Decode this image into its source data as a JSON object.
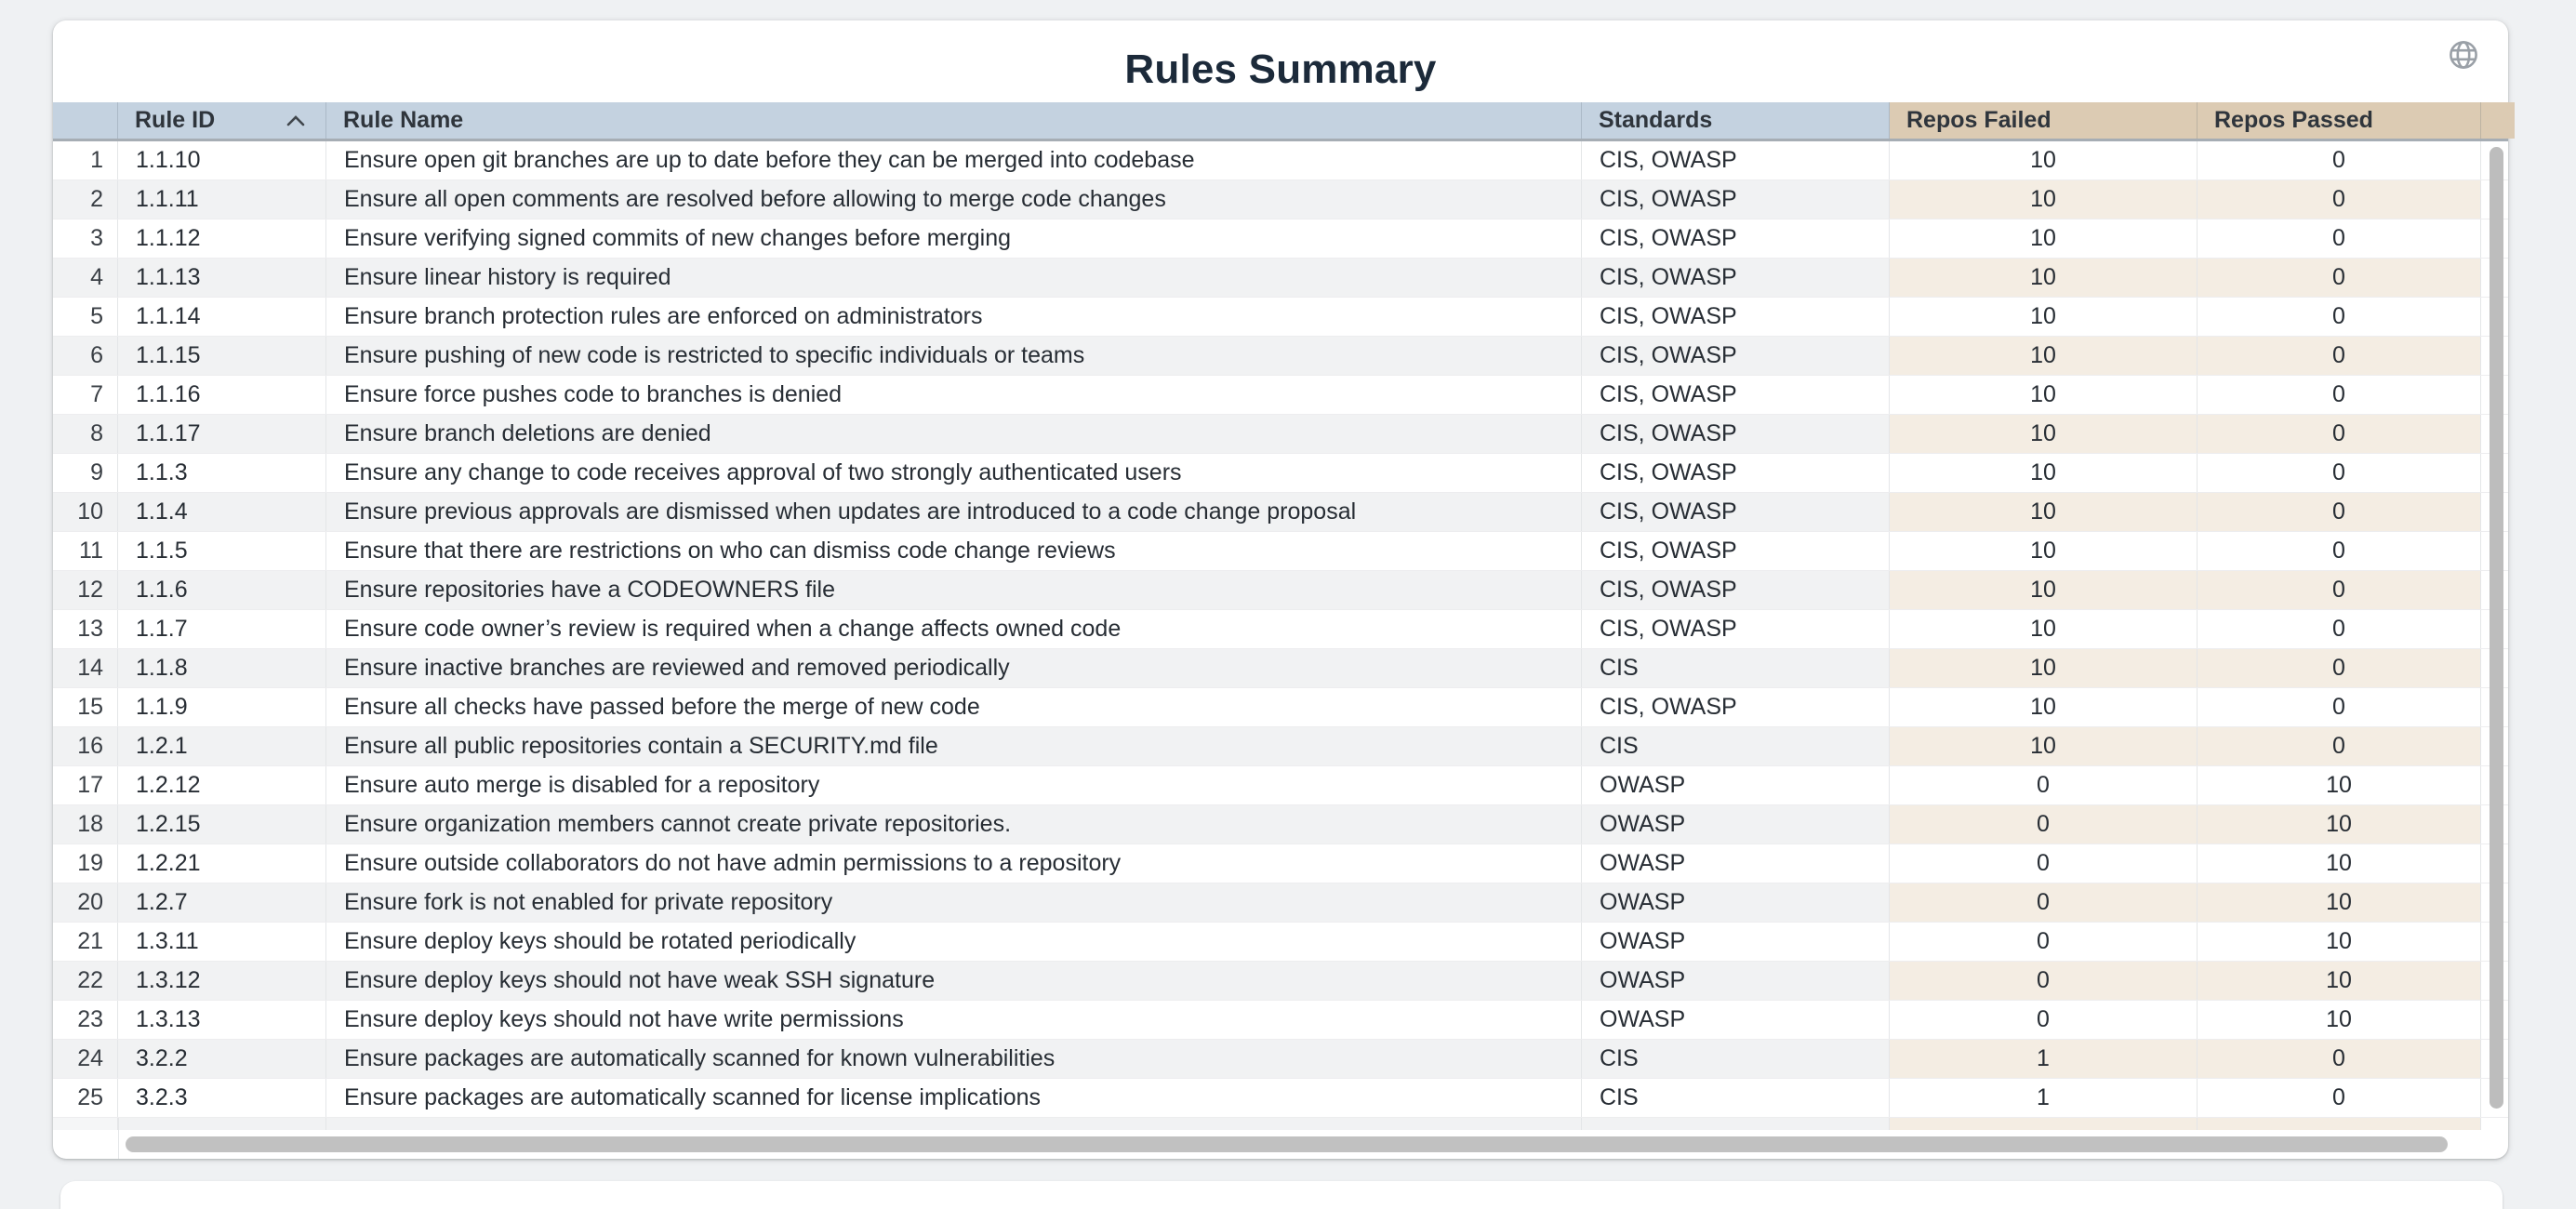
{
  "page": {
    "title": "Rules Summary"
  },
  "icons": {
    "top_right": "globe-icon",
    "rule_id_sort": "sort-ascending-icon"
  },
  "colors": {
    "page_background": "#eff1f3",
    "header_blue": "#c4d2e0",
    "header_tan": "#dccbb3",
    "stripe_gray": "#f1f2f3",
    "stripe_tan": "#f4ede3",
    "title_text": "#1c2a3a",
    "body_text": "#272d34",
    "scrollbar_thumb": "#bdbdbd"
  },
  "table": {
    "columns": [
      {
        "key": "num",
        "label": ""
      },
      {
        "key": "rule_id",
        "label": "Rule ID",
        "sort": "ascending"
      },
      {
        "key": "rule_name",
        "label": "Rule Name"
      },
      {
        "key": "standards",
        "label": "Standards"
      },
      {
        "key": "repos_failed",
        "label": "Repos Failed"
      },
      {
        "key": "repos_passed",
        "label": "Repos Passed"
      }
    ],
    "rows": [
      {
        "num": 1,
        "rule_id": "1.1.10",
        "rule_name": "Ensure open git branches are up to date before they can be merged into codebase",
        "standards": "CIS, OWASP",
        "repos_failed": 10,
        "repos_passed": 0
      },
      {
        "num": 2,
        "rule_id": "1.1.11",
        "rule_name": "Ensure all open comments are resolved before allowing to merge code changes",
        "standards": "CIS, OWASP",
        "repos_failed": 10,
        "repos_passed": 0
      },
      {
        "num": 3,
        "rule_id": "1.1.12",
        "rule_name": "Ensure verifying signed commits of new changes before merging",
        "standards": "CIS, OWASP",
        "repos_failed": 10,
        "repos_passed": 0
      },
      {
        "num": 4,
        "rule_id": "1.1.13",
        "rule_name": "Ensure linear history is required",
        "standards": "CIS, OWASP",
        "repos_failed": 10,
        "repos_passed": 0
      },
      {
        "num": 5,
        "rule_id": "1.1.14",
        "rule_name": "Ensure branch protection rules are enforced on administrators",
        "standards": "CIS, OWASP",
        "repos_failed": 10,
        "repos_passed": 0
      },
      {
        "num": 6,
        "rule_id": "1.1.15",
        "rule_name": "Ensure pushing of new code is restricted to specific individuals or teams",
        "standards": "CIS, OWASP",
        "repos_failed": 10,
        "repos_passed": 0
      },
      {
        "num": 7,
        "rule_id": "1.1.16",
        "rule_name": "Ensure force pushes code to branches is denied",
        "standards": "CIS, OWASP",
        "repos_failed": 10,
        "repos_passed": 0
      },
      {
        "num": 8,
        "rule_id": "1.1.17",
        "rule_name": "Ensure branch deletions are denied",
        "standards": "CIS, OWASP",
        "repos_failed": 10,
        "repos_passed": 0
      },
      {
        "num": 9,
        "rule_id": "1.1.3",
        "rule_name": "Ensure any change to code receives approval of two strongly authenticated users",
        "standards": "CIS, OWASP",
        "repos_failed": 10,
        "repos_passed": 0
      },
      {
        "num": 10,
        "rule_id": "1.1.4",
        "rule_name": "Ensure previous approvals are dismissed when updates are introduced to a code change proposal",
        "standards": "CIS, OWASP",
        "repos_failed": 10,
        "repos_passed": 0
      },
      {
        "num": 11,
        "rule_id": "1.1.5",
        "rule_name": "Ensure that there are restrictions on who can dismiss code change reviews",
        "standards": "CIS, OWASP",
        "repos_failed": 10,
        "repos_passed": 0
      },
      {
        "num": 12,
        "rule_id": "1.1.6",
        "rule_name": "Ensure repositories have a CODEOWNERS file",
        "standards": "CIS, OWASP",
        "repos_failed": 10,
        "repos_passed": 0
      },
      {
        "num": 13,
        "rule_id": "1.1.7",
        "rule_name": "Ensure code owner’s review is required when a change affects owned code",
        "standards": "CIS, OWASP",
        "repos_failed": 10,
        "repos_passed": 0
      },
      {
        "num": 14,
        "rule_id": "1.1.8",
        "rule_name": "Ensure inactive branches are reviewed and removed periodically",
        "standards": "CIS",
        "repos_failed": 10,
        "repos_passed": 0
      },
      {
        "num": 15,
        "rule_id": "1.1.9",
        "rule_name": "Ensure all checks have passed before the merge of new code",
        "standards": "CIS, OWASP",
        "repos_failed": 10,
        "repos_passed": 0
      },
      {
        "num": 16,
        "rule_id": "1.2.1",
        "rule_name": "Ensure all public repositories contain a SECURITY.md file",
        "standards": "CIS",
        "repos_failed": 10,
        "repos_passed": 0
      },
      {
        "num": 17,
        "rule_id": "1.2.12",
        "rule_name": "Ensure auto merge is disabled for a repository",
        "standards": "OWASP",
        "repos_failed": 0,
        "repos_passed": 10
      },
      {
        "num": 18,
        "rule_id": "1.2.15",
        "rule_name": "Ensure organization members cannot create private repositories.",
        "standards": "OWASP",
        "repos_failed": 0,
        "repos_passed": 10
      },
      {
        "num": 19,
        "rule_id": "1.2.21",
        "rule_name": "Ensure outside collaborators do not have admin permissions to a repository",
        "standards": "OWASP",
        "repos_failed": 0,
        "repos_passed": 10
      },
      {
        "num": 20,
        "rule_id": "1.2.7",
        "rule_name": "Ensure fork is not enabled for private repository",
        "standards": "OWASP",
        "repos_failed": 0,
        "repos_passed": 10
      },
      {
        "num": 21,
        "rule_id": "1.3.11",
        "rule_name": "Ensure deploy keys should be rotated periodically",
        "standards": "OWASP",
        "repos_failed": 0,
        "repos_passed": 10
      },
      {
        "num": 22,
        "rule_id": "1.3.12",
        "rule_name": "Ensure deploy keys should not have weak SSH signature",
        "standards": "OWASP",
        "repos_failed": 0,
        "repos_passed": 10
      },
      {
        "num": 23,
        "rule_id": "1.3.13",
        "rule_name": "Ensure deploy keys should not have write permissions",
        "standards": "OWASP",
        "repos_failed": 0,
        "repos_passed": 10
      },
      {
        "num": 24,
        "rule_id": "3.2.2",
        "rule_name": "Ensure packages are automatically scanned for known vulnerabilities",
        "standards": "CIS",
        "repos_failed": 1,
        "repos_passed": 0
      },
      {
        "num": 25,
        "rule_id": "3.2.3",
        "rule_name": "Ensure packages are automatically scanned for license implications",
        "standards": "CIS",
        "repos_failed": 1,
        "repos_passed": 0
      }
    ]
  }
}
